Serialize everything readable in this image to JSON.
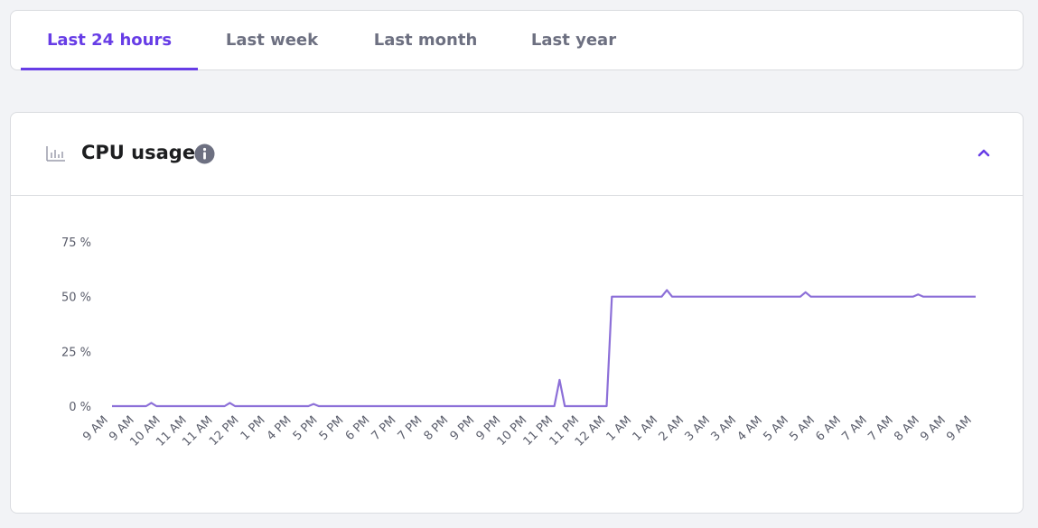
{
  "tabs": [
    {
      "label": "Last 24 hours",
      "active": true
    },
    {
      "label": "Last week",
      "active": false
    },
    {
      "label": "Last month",
      "active": false
    },
    {
      "label": "Last year",
      "active": false
    }
  ],
  "panel": {
    "title": "CPU usage",
    "icon": "bar-chart-icon",
    "info_icon": "info-icon",
    "collapse_icon": "chevron-up-icon"
  },
  "colors": {
    "accent": "#673de6",
    "line": "#8c6fd8",
    "text": "#1d1e20",
    "muted": "#6d7081"
  },
  "chart_data": {
    "type": "line",
    "title": "CPU usage",
    "xlabel": "",
    "ylabel": "",
    "y_unit": "%",
    "ylim": [
      0,
      75
    ],
    "y_ticks": [
      {
        "value": 0,
        "label": "0 %"
      },
      {
        "value": 25,
        "label": "25 %"
      },
      {
        "value": 50,
        "label": "50 %"
      },
      {
        "value": 75,
        "label": "75 %"
      }
    ],
    "grid": false,
    "categories": [
      "9 AM",
      "9 AM",
      "10 AM",
      "11 AM",
      "11 AM",
      "12 PM",
      "1 PM",
      "4 PM",
      "5 PM",
      "5 PM",
      "6 PM",
      "7 PM",
      "7 PM",
      "8 PM",
      "9 PM",
      "9 PM",
      "10 PM",
      "11 PM",
      "11 PM",
      "12 AM",
      "1 AM",
      "1 AM",
      "2 AM",
      "3 AM",
      "3 AM",
      "4 AM",
      "5 AM",
      "5 AM",
      "6 AM",
      "7 AM",
      "7 AM",
      "8 AM",
      "9 AM",
      "9 AM"
    ],
    "series": [
      {
        "name": "CPU usage",
        "x": [
          0,
          1.3,
          1.5,
          1.7,
          4.3,
          4.5,
          4.7,
          7.5,
          7.7,
          7.9,
          16.9,
          17.1,
          17.3,
          18.9,
          19.1,
          21.0,
          21.2,
          21.4,
          26.3,
          26.5,
          26.7,
          30.6,
          30.8,
          31.0,
          33.0
        ],
        "values": [
          0,
          0,
          1.5,
          0,
          0,
          1.5,
          0,
          0,
          1,
          0,
          0,
          12,
          0,
          0,
          50,
          50,
          53,
          50,
          50,
          52,
          50,
          50,
          51,
          50,
          50
        ]
      }
    ]
  }
}
